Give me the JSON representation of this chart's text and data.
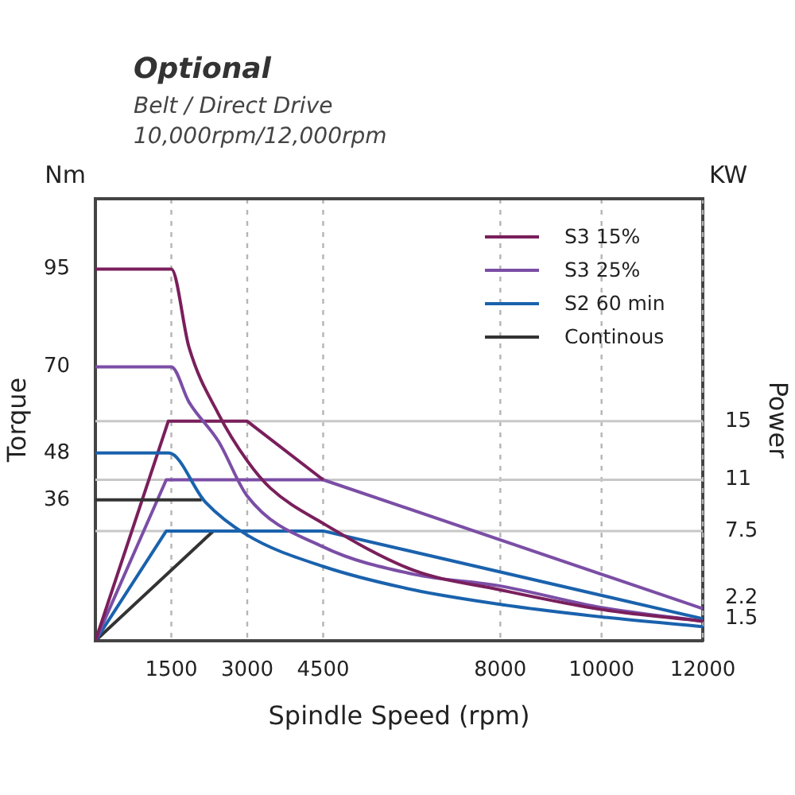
{
  "chart_data": {
    "type": "line",
    "title": "Optional",
    "subtitle": "Belt / Direct Drive\n10,000rpm/12,000rpm",
    "xlabel": "Spindle Speed (rpm)",
    "ylabel": "Torque",
    "y2label": "Power",
    "annotations": [
      "Nm",
      "KW"
    ],
    "xlim": [
      0,
      12000
    ],
    "xticks": [
      1500,
      3000,
      4500,
      8000,
      10000,
      12000
    ],
    "ylim": [
      0,
      113
    ],
    "yticks": [
      36,
      48,
      70,
      95
    ],
    "y2lim": [
      0,
      30.2
    ],
    "y2ticks": [
      1.5,
      2.2,
      7.5,
      11,
      15
    ],
    "grid": "x",
    "legend": "top right",
    "marker": "none",
    "ref_lines": [
      {
        "axis": "y2",
        "value": 15,
        "color": "#c8c8c8"
      },
      {
        "axis": "y2",
        "value": 11,
        "color": "#c8c8c8"
      },
      {
        "axis": "y2",
        "value": 7.5,
        "color": "#c8c8c8"
      }
    ],
    "series": [
      {
        "name": "S3 15%",
        "color": "#7a1f5c",
        "x": [
          0,
          1500,
          1850,
          2430,
          3000,
          3460,
          4500,
          6290,
          8000,
          10000,
          12000
        ],
        "values": [
          95,
          95,
          75,
          58,
          46,
          39,
          30,
          18,
          13,
          8,
          5
        ]
      },
      {
        "name": "S3 25%",
        "color": "#7b4ea6",
        "x": [
          0,
          1500,
          1850,
          2430,
          3000,
          4500,
          6290,
          8000,
          10000,
          12000
        ],
        "values": [
          70,
          70,
          61,
          51,
          37,
          24,
          17,
          14,
          8.5,
          5
        ]
      },
      {
        "name": "S2 60 min",
        "color": "#1a62ad",
        "x": [
          0,
          1450,
          2170,
          3000,
          4500,
          6290,
          8000,
          10000,
          12000
        ],
        "values": [
          48,
          48,
          35.5,
          27,
          19,
          13,
          9.3,
          6.1,
          3.6
        ]
      },
      {
        "name": "Continous",
        "color": "#333333",
        "x": [
          0,
          2100
        ],
        "values": [
          36,
          36
        ]
      },
      {
        "color": "#7a1f5c",
        "axis": "y2",
        "x": [
          0,
          1440,
          3000,
          4500
        ],
        "values": [
          0,
          15,
          15,
          11
        ]
      },
      {
        "color": "#7b4ea6",
        "axis": "y2",
        "x": [
          0,
          1400,
          4500,
          12000
        ],
        "values": [
          0,
          11,
          11,
          2.2
        ]
      },
      {
        "color": "#1a62ad",
        "axis": "y2",
        "x": [
          0,
          1400,
          4500,
          12000
        ],
        "values": [
          0,
          7.5,
          7.5,
          1.5
        ]
      },
      {
        "color": "#333333",
        "axis": "y2",
        "x": [
          0,
          2330
        ],
        "values": [
          0,
          7.5
        ]
      }
    ]
  }
}
